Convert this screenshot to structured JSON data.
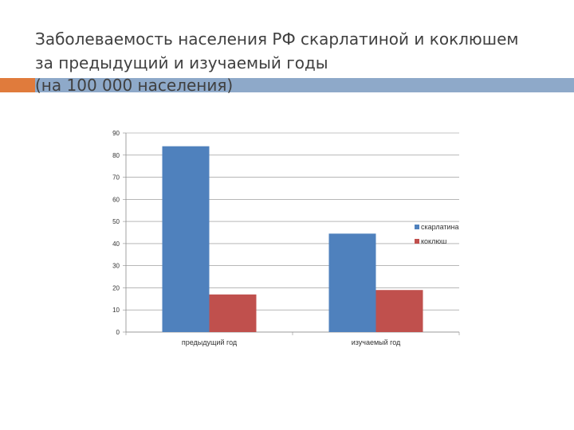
{
  "slide": {
    "title_line1": "Заболеваемость населения РФ скарлатиной и коклюшем",
    "title_line2": "за предыдущий и изучаемый годы",
    "title_line3": "(на 100 000 населения)"
  },
  "colors": {
    "accent_orange": "#e07b3c",
    "accent_blue": "#8ea9c9"
  },
  "chart_data": {
    "type": "bar",
    "title": "",
    "xlabel": "",
    "ylabel": "",
    "categories": [
      "предыдущий год",
      "изучаемый год"
    ],
    "series": [
      {
        "name": "скарлатина",
        "values": [
          84,
          44.5
        ],
        "color": "#4f81bd"
      },
      {
        "name": "коклюш",
        "values": [
          17,
          19
        ],
        "color": "#c0504d"
      }
    ],
    "ylim": [
      0,
      90
    ],
    "yticks": [
      0,
      10,
      20,
      30,
      40,
      50,
      60,
      70,
      80,
      90
    ],
    "grid": true,
    "legend": "right"
  }
}
